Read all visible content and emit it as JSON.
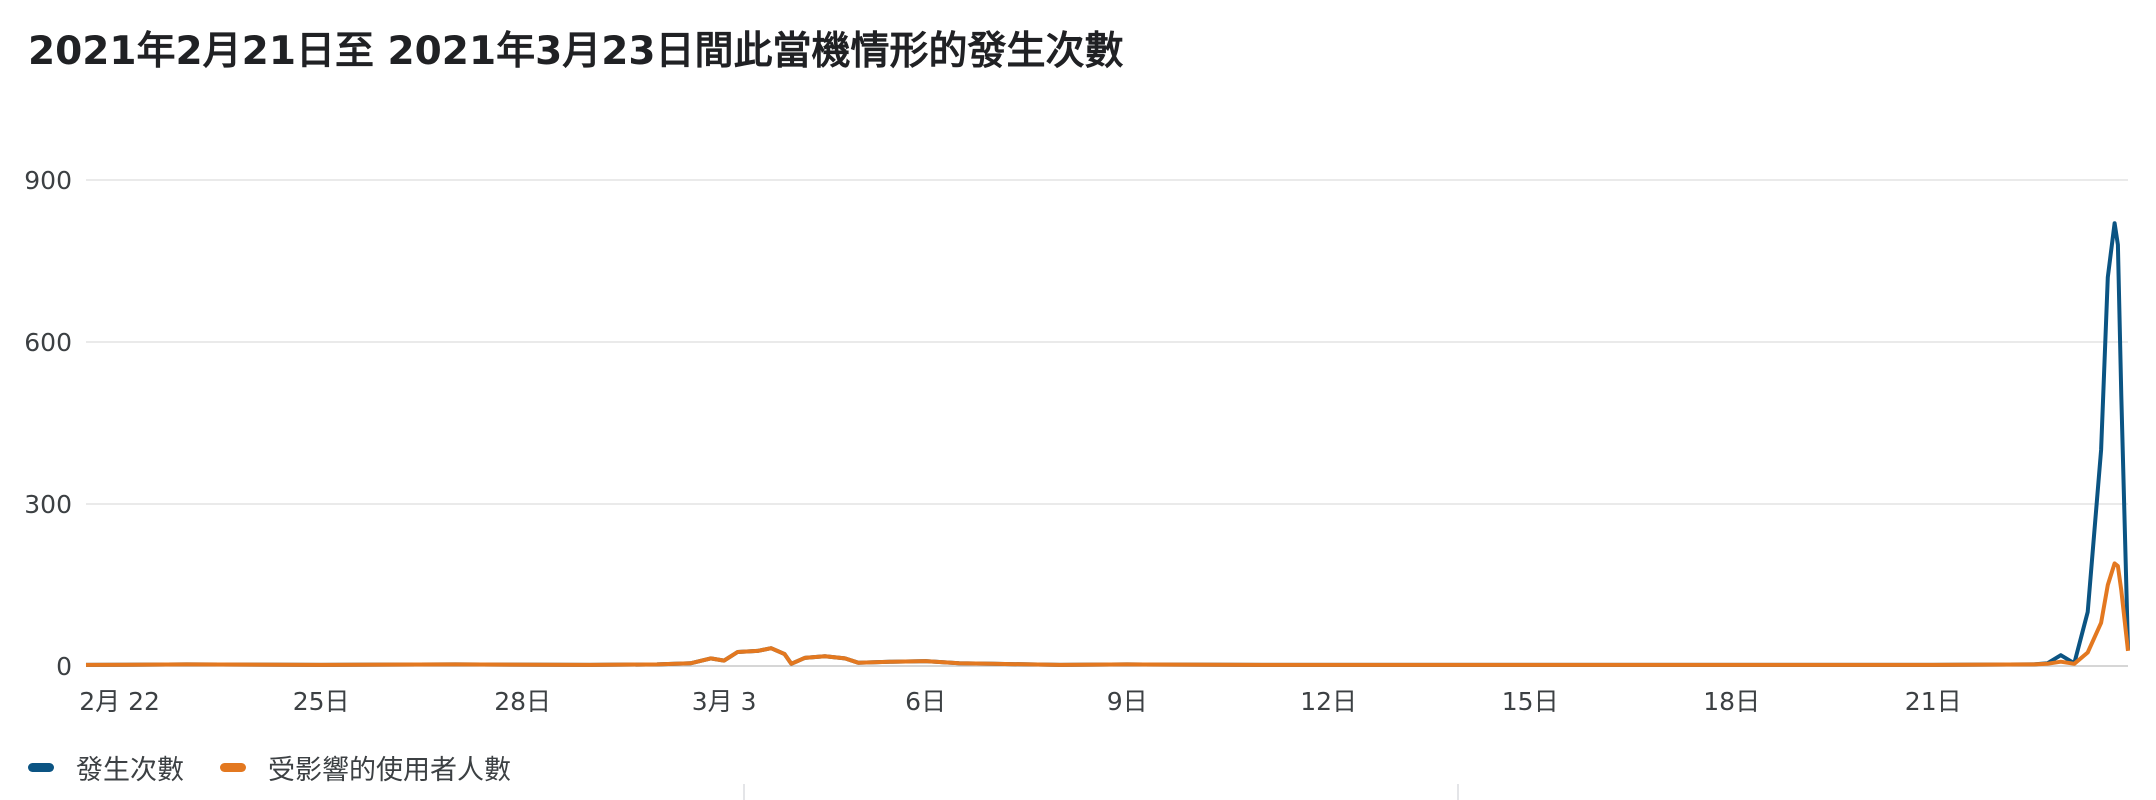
{
  "chart_data": {
    "type": "line",
    "title": "2021年2月21日至 2021年3月23日間此當機情形的發生次數",
    "xlabel": "",
    "ylabel": "",
    "ylim": [
      0,
      1000
    ],
    "yticks": [
      "0",
      "300",
      "600",
      "900"
    ],
    "y_values_ticks": [
      0,
      300,
      600,
      900
    ],
    "xlim": [
      0.5,
      30.9
    ],
    "x_ticks": [
      {
        "x": 1,
        "label": "2月 22"
      },
      {
        "x": 4,
        "label": "25日"
      },
      {
        "x": 7,
        "label": "28日"
      },
      {
        "x": 10,
        "label": "3月 3"
      },
      {
        "x": 13,
        "label": "6日"
      },
      {
        "x": 16,
        "label": "9日"
      },
      {
        "x": 19,
        "label": "12日"
      },
      {
        "x": 22,
        "label": "15日"
      },
      {
        "x": 25,
        "label": "18日"
      },
      {
        "x": 28,
        "label": "21日"
      }
    ],
    "grid": true,
    "legend_position": "bottom-left",
    "series": [
      {
        "name": "發生次數",
        "color": "#0b5483",
        "x": [
          0.5,
          2,
          4,
          6,
          8,
          9,
          9.5,
          9.8,
          10,
          10.2,
          10.5,
          10.7,
          10.9,
          11,
          11.2,
          11.5,
          11.8,
          12,
          12.5,
          13,
          13.5,
          14,
          15,
          16,
          18,
          20,
          22,
          24,
          26,
          28,
          29.5,
          29.7,
          29.9,
          30.1,
          30.3,
          30.5,
          30.6,
          30.7,
          30.75,
          30.8,
          30.9
        ],
        "y": [
          2,
          3,
          2,
          3,
          2,
          3,
          5,
          14,
          10,
          26,
          28,
          33,
          22,
          4,
          15,
          18,
          14,
          6,
          8,
          9,
          5,
          4,
          2,
          3,
          2,
          2,
          2,
          2,
          2,
          2,
          3,
          5,
          20,
          5,
          100,
          400,
          720,
          820,
          780,
          500,
          30
        ]
      },
      {
        "name": "受影響的使用者人數",
        "color": "#e37820",
        "x": [
          0.5,
          2,
          4,
          6,
          8,
          9,
          9.5,
          9.8,
          10,
          10.2,
          10.5,
          10.7,
          10.9,
          11,
          11.2,
          11.5,
          11.8,
          12,
          12.5,
          13,
          13.5,
          14,
          15,
          16,
          18,
          20,
          22,
          24,
          26,
          28,
          29.5,
          29.7,
          29.9,
          30.1,
          30.3,
          30.5,
          30.6,
          30.7,
          30.75,
          30.8,
          30.9
        ],
        "y": [
          2,
          3,
          2,
          3,
          2,
          3,
          5,
          14,
          10,
          26,
          28,
          33,
          22,
          4,
          15,
          18,
          14,
          6,
          8,
          9,
          5,
          4,
          2,
          3,
          2,
          2,
          2,
          2,
          2,
          2,
          3,
          4,
          8,
          4,
          25,
          80,
          150,
          190,
          185,
          140,
          28
        ]
      }
    ]
  },
  "legend": {
    "items": [
      {
        "label": "發生次數",
        "color": "#0b5483"
      },
      {
        "label": "受影響的使用者人數",
        "color": "#e37820"
      }
    ]
  }
}
